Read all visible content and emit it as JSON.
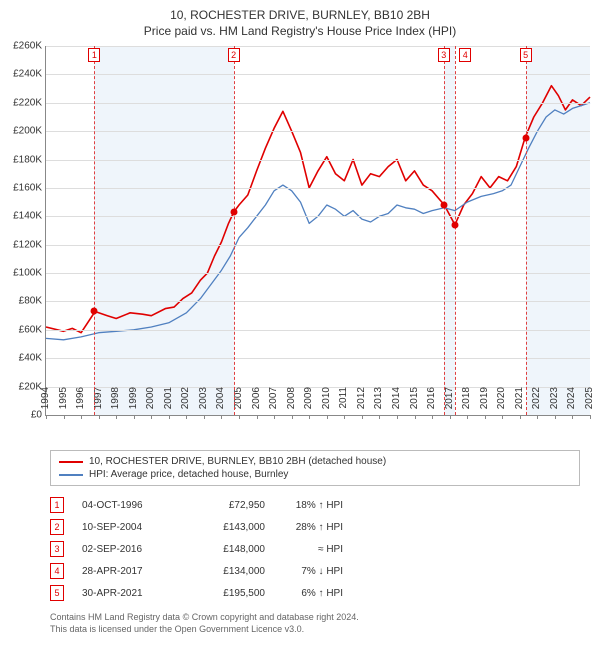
{
  "title": "10, ROCHESTER DRIVE, BURNLEY, BB10 2BH",
  "subtitle": "Price paid vs. HM Land Registry's House Price Index (HPI)",
  "chart": {
    "type": "line",
    "background_color": "#ffffff",
    "grid_color": "#dddddd",
    "axis_color": "#888888",
    "xlim": [
      1994,
      2025
    ],
    "ylim": [
      0,
      260000
    ],
    "ytick_step": 20000,
    "y_tick_labels": [
      "£0",
      "£20K",
      "£40K",
      "£60K",
      "£80K",
      "£100K",
      "£120K",
      "£140K",
      "£160K",
      "£180K",
      "£200K",
      "£220K",
      "£240K",
      "£260K"
    ],
    "x_years": [
      1994,
      1995,
      1996,
      1997,
      1998,
      1999,
      2000,
      2001,
      2002,
      2003,
      2004,
      2005,
      2006,
      2007,
      2008,
      2009,
      2010,
      2011,
      2012,
      2013,
      2014,
      2015,
      2016,
      2017,
      2018,
      2019,
      2020,
      2021,
      2022,
      2023,
      2024,
      2025
    ],
    "label_fontsize": 10,
    "series": [
      {
        "name": "10, ROCHESTER DRIVE, BURNLEY, BB10 2BH (detached house)",
        "color": "#e00000",
        "line_width": 1.6,
        "points": [
          [
            1994.0,
            62000
          ],
          [
            1995.0,
            59000
          ],
          [
            1995.5,
            61000
          ],
          [
            1996.0,
            58000
          ],
          [
            1996.8,
            72950
          ],
          [
            1997.5,
            70000
          ],
          [
            1998.0,
            68000
          ],
          [
            1998.8,
            72000
          ],
          [
            1999.5,
            71000
          ],
          [
            2000.0,
            70000
          ],
          [
            2000.8,
            75000
          ],
          [
            2001.3,
            76000
          ],
          [
            2001.8,
            82000
          ],
          [
            2002.3,
            86000
          ],
          [
            2002.8,
            95000
          ],
          [
            2003.2,
            100000
          ],
          [
            2003.6,
            112000
          ],
          [
            2004.0,
            122000
          ],
          [
            2004.4,
            135000
          ],
          [
            2004.7,
            143000
          ],
          [
            2005.0,
            148000
          ],
          [
            2005.5,
            155000
          ],
          [
            2006.0,
            172000
          ],
          [
            2006.5,
            188000
          ],
          [
            2007.0,
            202000
          ],
          [
            2007.5,
            214000
          ],
          [
            2008.0,
            200000
          ],
          [
            2008.5,
            185000
          ],
          [
            2009.0,
            160000
          ],
          [
            2009.5,
            172000
          ],
          [
            2010.0,
            182000
          ],
          [
            2010.5,
            170000
          ],
          [
            2011.0,
            165000
          ],
          [
            2011.5,
            180000
          ],
          [
            2012.0,
            162000
          ],
          [
            2012.5,
            170000
          ],
          [
            2013.0,
            168000
          ],
          [
            2013.5,
            175000
          ],
          [
            2014.0,
            180000
          ],
          [
            2014.5,
            165000
          ],
          [
            2015.0,
            172000
          ],
          [
            2015.5,
            162000
          ],
          [
            2016.0,
            158000
          ],
          [
            2016.7,
            148000
          ],
          [
            2017.3,
            134000
          ],
          [
            2017.8,
            148000
          ],
          [
            2018.3,
            156000
          ],
          [
            2018.8,
            168000
          ],
          [
            2019.3,
            160000
          ],
          [
            2019.8,
            168000
          ],
          [
            2020.3,
            165000
          ],
          [
            2020.8,
            175000
          ],
          [
            2021.3,
            195500
          ],
          [
            2021.8,
            210000
          ],
          [
            2022.3,
            220000
          ],
          [
            2022.8,
            232000
          ],
          [
            2023.2,
            225000
          ],
          [
            2023.6,
            215000
          ],
          [
            2024.0,
            222000
          ],
          [
            2024.5,
            218000
          ],
          [
            2025.0,
            224000
          ]
        ]
      },
      {
        "name": "HPI: Average price, detached house, Burnley",
        "color": "#5080c0",
        "line_width": 1.3,
        "points": [
          [
            1994.0,
            54000
          ],
          [
            1995.0,
            53000
          ],
          [
            1996.0,
            55000
          ],
          [
            1997.0,
            58000
          ],
          [
            1998.0,
            59000
          ],
          [
            1999.0,
            60000
          ],
          [
            2000.0,
            62000
          ],
          [
            2001.0,
            65000
          ],
          [
            2002.0,
            72000
          ],
          [
            2002.8,
            82000
          ],
          [
            2003.4,
            92000
          ],
          [
            2004.0,
            102000
          ],
          [
            2004.5,
            112000
          ],
          [
            2005.0,
            125000
          ],
          [
            2005.5,
            132000
          ],
          [
            2006.0,
            140000
          ],
          [
            2006.5,
            148000
          ],
          [
            2007.0,
            158000
          ],
          [
            2007.5,
            162000
          ],
          [
            2008.0,
            158000
          ],
          [
            2008.5,
            150000
          ],
          [
            2009.0,
            135000
          ],
          [
            2009.5,
            140000
          ],
          [
            2010.0,
            148000
          ],
          [
            2010.5,
            145000
          ],
          [
            2011.0,
            140000
          ],
          [
            2011.5,
            144000
          ],
          [
            2012.0,
            138000
          ],
          [
            2012.5,
            136000
          ],
          [
            2013.0,
            140000
          ],
          [
            2013.5,
            142000
          ],
          [
            2014.0,
            148000
          ],
          [
            2014.5,
            146000
          ],
          [
            2015.0,
            145000
          ],
          [
            2015.5,
            142000
          ],
          [
            2016.0,
            144000
          ],
          [
            2016.7,
            146000
          ],
          [
            2017.3,
            144000
          ],
          [
            2018.0,
            150000
          ],
          [
            2018.8,
            154000
          ],
          [
            2019.5,
            156000
          ],
          [
            2020.0,
            158000
          ],
          [
            2020.5,
            162000
          ],
          [
            2021.0,
            175000
          ],
          [
            2021.5,
            188000
          ],
          [
            2022.0,
            200000
          ],
          [
            2022.5,
            210000
          ],
          [
            2023.0,
            215000
          ],
          [
            2023.5,
            212000
          ],
          [
            2024.0,
            216000
          ],
          [
            2024.5,
            218000
          ],
          [
            2025.0,
            220000
          ]
        ]
      }
    ],
    "events": [
      {
        "n": "1",
        "x": 1996.76,
        "price": 72950
      },
      {
        "n": "2",
        "x": 2004.69,
        "price": 143000
      },
      {
        "n": "3",
        "x": 2016.67,
        "price": 148000
      },
      {
        "n": "4",
        "x": 2017.32,
        "price": 134000
      },
      {
        "n": "5",
        "x": 2021.33,
        "price": 195500
      }
    ],
    "event_line_color": "#e04040",
    "event_marker_color": "#e00000",
    "event_box_border": "#e00000"
  },
  "legend": {
    "items": [
      {
        "color": "#e00000",
        "label": "10, ROCHESTER DRIVE, BURNLEY, BB10 2BH (detached house)"
      },
      {
        "color": "#5080c0",
        "label": "HPI: Average price, detached house, Burnley"
      }
    ]
  },
  "event_table": [
    {
      "n": "1",
      "date": "04-OCT-1996",
      "price": "£72,950",
      "diff": "18% ↑ HPI"
    },
    {
      "n": "2",
      "date": "10-SEP-2004",
      "price": "£143,000",
      "diff": "28% ↑ HPI"
    },
    {
      "n": "3",
      "date": "02-SEP-2016",
      "price": "£148,000",
      "diff": "≈ HPI"
    },
    {
      "n": "4",
      "date": "28-APR-2017",
      "price": "£134,000",
      "diff": "7% ↓ HPI"
    },
    {
      "n": "5",
      "date": "30-APR-2021",
      "price": "£195,500",
      "diff": "6% ↑ HPI"
    }
  ],
  "footer_line1": "Contains HM Land Registry data © Crown copyright and database right 2024.",
  "footer_line2": "This data is licensed under the Open Government Licence v3.0."
}
